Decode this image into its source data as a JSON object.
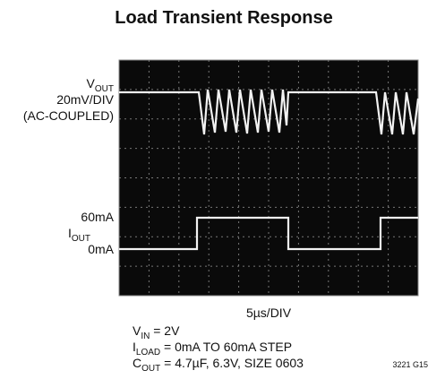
{
  "title": "Load Transient Response",
  "vout_label": {
    "main": "V",
    "sub": "OUT"
  },
  "vout_scale": "20mV/DIV",
  "vout_coupling": "(AC-COUPLED)",
  "iout_high": "60mA",
  "iout_label": {
    "main": "I",
    "sub": "OUT"
  },
  "iout_low": "0mA",
  "time_scale": "5µs/DIV",
  "notes": [
    {
      "main": "V",
      "sub": "IN",
      "rest": " = 2V"
    },
    {
      "main": "I",
      "sub": "LOAD",
      "rest": " = 0mA TO 60mA STEP"
    },
    {
      "main": "C",
      "sub": "OUT",
      "rest": " = 4.7µF, 6.3V, SIZE 0603"
    }
  ],
  "figure_id": "3221 G15"
}
